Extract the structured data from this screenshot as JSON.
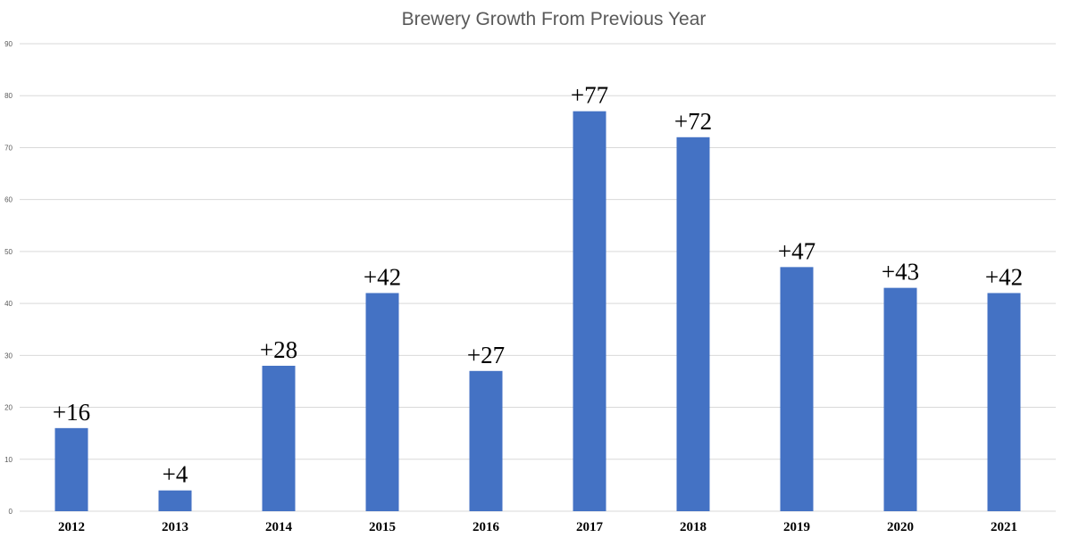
{
  "chart_data": {
    "type": "bar",
    "title": "Brewery Growth From Previous Year",
    "xlabel": "",
    "ylabel": "",
    "categories": [
      "2012",
      "2013",
      "2014",
      "2015",
      "2016",
      "2017",
      "2018",
      "2019",
      "2020",
      "2021"
    ],
    "values": [
      16,
      4,
      28,
      42,
      27,
      77,
      72,
      47,
      43,
      42
    ],
    "data_labels": [
      "+16",
      "+4",
      "+28",
      "+42",
      "+27",
      "+77",
      "+72",
      "+47",
      "+43",
      "+42"
    ],
    "ylim": [
      0,
      90
    ],
    "yticks": [
      0,
      10,
      20,
      30,
      40,
      50,
      60,
      70,
      80,
      90
    ],
    "grid": true,
    "legend": "none",
    "bar_color": "#4472c4"
  }
}
